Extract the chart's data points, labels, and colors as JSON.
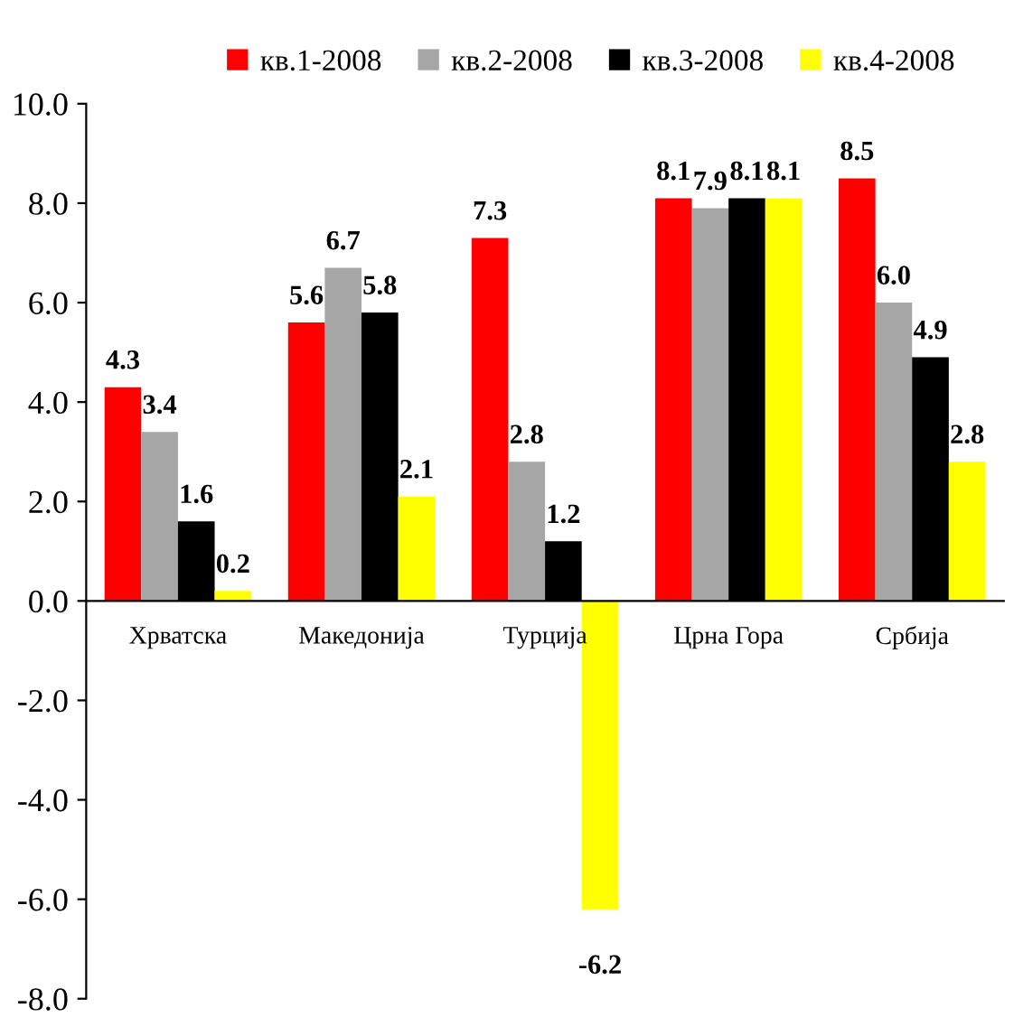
{
  "chart_data": {
    "type": "bar",
    "categories": [
      "Хрватска",
      "Македонија",
      "Турција",
      "Црна Гора",
      "Србија"
    ],
    "series": [
      {
        "name": "кв.1-2008",
        "color": "#ff0000",
        "values": [
          4.3,
          5.6,
          7.3,
          8.1,
          8.5
        ],
        "value_labels": [
          "4.3",
          "5.6",
          "7.3",
          "8.1",
          "8.5"
        ]
      },
      {
        "name": "кв.2-2008",
        "color": "#a6a6a6",
        "values": [
          3.4,
          6.7,
          2.8,
          7.9,
          6.0
        ],
        "value_labels": [
          "3.4",
          "6.7",
          "2.8",
          "7.9",
          "6.0"
        ]
      },
      {
        "name": "кв.3-2008",
        "color": "#000000",
        "values": [
          1.6,
          5.8,
          1.2,
          8.1,
          4.9
        ],
        "value_labels": [
          "1.6",
          "5.8",
          "1.2",
          "8.1",
          "4.9"
        ]
      },
      {
        "name": "кв.4-2008",
        "color": "#ffff00",
        "values": [
          0.2,
          2.1,
          -6.2,
          8.1,
          2.8
        ],
        "value_labels": [
          "0.2",
          "2.1",
          "-6.2",
          "8.1",
          "2.8"
        ]
      }
    ],
    "ylim": [
      -8,
      10
    ],
    "yticks": [
      {
        "value": -8,
        "label": "-8.0"
      },
      {
        "value": -6,
        "label": "-6.0"
      },
      {
        "value": -4,
        "label": "-4.0"
      },
      {
        "value": -2,
        "label": "-2.0"
      },
      {
        "value": 0,
        "label": "0.0"
      },
      {
        "value": 2,
        "label": "2.0"
      },
      {
        "value": 4,
        "label": "4.0"
      },
      {
        "value": 6,
        "label": "6.0"
      },
      {
        "value": 8,
        "label": "8.0"
      },
      {
        "value": 10,
        "label": "10.0"
      }
    ],
    "grid": false,
    "legend": "top"
  }
}
